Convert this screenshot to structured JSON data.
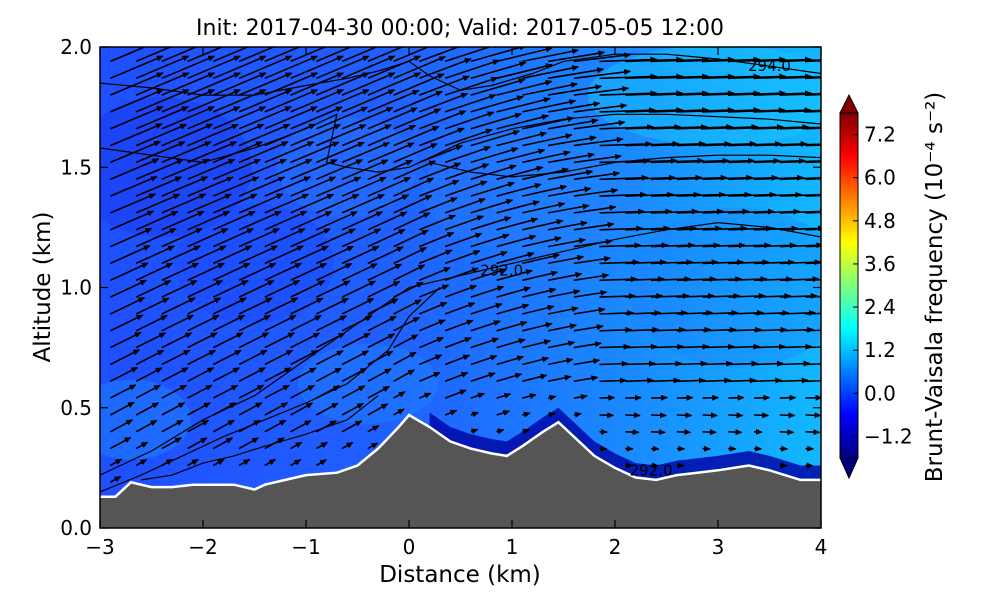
{
  "chart_data": {
    "type": "heatmap",
    "title": "Init: 2017-04-30 00:00; Valid: 2017-05-05 12:00",
    "xlabel": "Distance (km)",
    "ylabel": "Altitude (km)",
    "xlim": [
      -3,
      4
    ],
    "ylim": [
      0,
      2
    ],
    "xticks": [
      "−3",
      "−2",
      "−1",
      "0",
      "1",
      "2",
      "3",
      "4"
    ],
    "yticks": [
      "0.0",
      "0.5",
      "1.0",
      "1.5",
      "2.0"
    ],
    "colorbar": {
      "label": "Brunt-Vaisala frequency (10⁻⁴ s⁻²)",
      "ticks": [
        "−1.2",
        "0.0",
        "1.2",
        "2.4",
        "3.6",
        "4.8",
        "6.0",
        "7.2"
      ],
      "range": [
        -1.8,
        7.8
      ],
      "colors": [
        "#00007f",
        "#0000ff",
        "#007fff",
        "#00ffff",
        "#7fff7f",
        "#ffff00",
        "#ff7f00",
        "#ff0000",
        "#7f0000"
      ]
    },
    "terrain": {
      "x": [
        -3.0,
        -2.85,
        -2.7,
        -2.5,
        -2.3,
        -2.1,
        -1.9,
        -1.7,
        -1.5,
        -1.4,
        -1.2,
        -1.0,
        -0.7,
        -0.5,
        -0.3,
        -0.1,
        0.0,
        0.2,
        0.4,
        0.6,
        0.8,
        0.95,
        1.1,
        1.3,
        1.45,
        1.6,
        1.8,
        2.0,
        2.2,
        2.4,
        2.6,
        2.8,
        3.0,
        3.15,
        3.3,
        3.5,
        3.8,
        4.0
      ],
      "y": [
        0.13,
        0.13,
        0.19,
        0.17,
        0.17,
        0.18,
        0.18,
        0.18,
        0.16,
        0.18,
        0.2,
        0.22,
        0.23,
        0.26,
        0.33,
        0.42,
        0.47,
        0.42,
        0.36,
        0.33,
        0.31,
        0.3,
        0.34,
        0.4,
        0.44,
        0.38,
        0.3,
        0.25,
        0.21,
        0.2,
        0.22,
        0.23,
        0.24,
        0.25,
        0.26,
        0.24,
        0.2,
        0.2
      ]
    },
    "contour_labels": [
      {
        "text": "294.0",
        "x": 3.5,
        "y": 1.92
      },
      {
        "text": "292.0",
        "x": 0.9,
        "y": 1.07
      },
      {
        "text": "292.0",
        "x": 2.35,
        "y": 0.24
      }
    ],
    "contours": [
      {
        "x": [
          -3.0,
          -2.5,
          -2.0,
          -1.5,
          -1.0,
          -0.6,
          -0.3,
          0.0,
          0.2,
          0.5,
          0.8,
          1.2,
          1.5,
          2.0,
          2.5,
          3.0,
          3.5,
          4.0
        ],
        "y": [
          1.85,
          1.83,
          1.8,
          1.8,
          1.84,
          1.87,
          1.9,
          1.94,
          1.88,
          1.82,
          1.84,
          1.89,
          1.94,
          1.97,
          1.97,
          1.95,
          1.92,
          1.89
        ]
      },
      {
        "x": [
          -3.0,
          -2.5,
          -2.0,
          -1.5,
          -1.0,
          -0.7,
          -0.8,
          -0.6,
          -0.3,
          0.0,
          0.5,
          1.0,
          1.5,
          2.0,
          2.5,
          3.0,
          3.5,
          4.0
        ],
        "y": [
          1.58,
          1.55,
          1.52,
          1.58,
          1.66,
          1.72,
          1.52,
          1.5,
          1.48,
          1.5,
          1.6,
          1.66,
          1.7,
          1.72,
          1.72,
          1.71,
          1.7,
          1.68
        ]
      },
      {
        "x": [
          0.2,
          0.6,
          1.0,
          1.5,
          2.0,
          2.5,
          3.0,
          3.5,
          4.0
        ],
        "y": [
          1.52,
          1.48,
          1.46,
          1.48,
          1.52,
          1.54,
          1.55,
          1.55,
          1.54
        ]
      },
      {
        "x": [
          -3.0,
          -2.5,
          -2.0,
          -1.5,
          -1.0,
          -0.5,
          0.0,
          0.5,
          1.0,
          1.5,
          2.0,
          2.5,
          3.0,
          3.5,
          4.0
        ],
        "y": [
          0.22,
          0.32,
          0.45,
          0.55,
          0.7,
          0.85,
          1.0,
          1.05,
          1.1,
          1.15,
          1.2,
          1.24,
          1.27,
          1.25,
          1.21
        ]
      },
      {
        "x": [
          -3.0,
          -2.6,
          -2.2,
          -1.8,
          -1.4,
          -1.0,
          -0.6,
          -0.2,
          0.0,
          0.3
        ],
        "y": [
          0.15,
          0.22,
          0.3,
          0.38,
          0.45,
          0.52,
          0.6,
          0.74,
          0.88,
          1.0
        ]
      },
      {
        "x": [
          -2.6,
          -2.3,
          -2.0,
          -1.7,
          -1.4,
          -1.0,
          -0.6,
          -0.3
        ],
        "y": [
          0.2,
          0.22,
          0.27,
          0.3,
          0.34,
          0.39,
          0.45,
          0.55
        ]
      }
    ],
    "wind_vectors": {
      "x_spacing_km": 0.25,
      "y_spacing_km": 0.07
    }
  }
}
